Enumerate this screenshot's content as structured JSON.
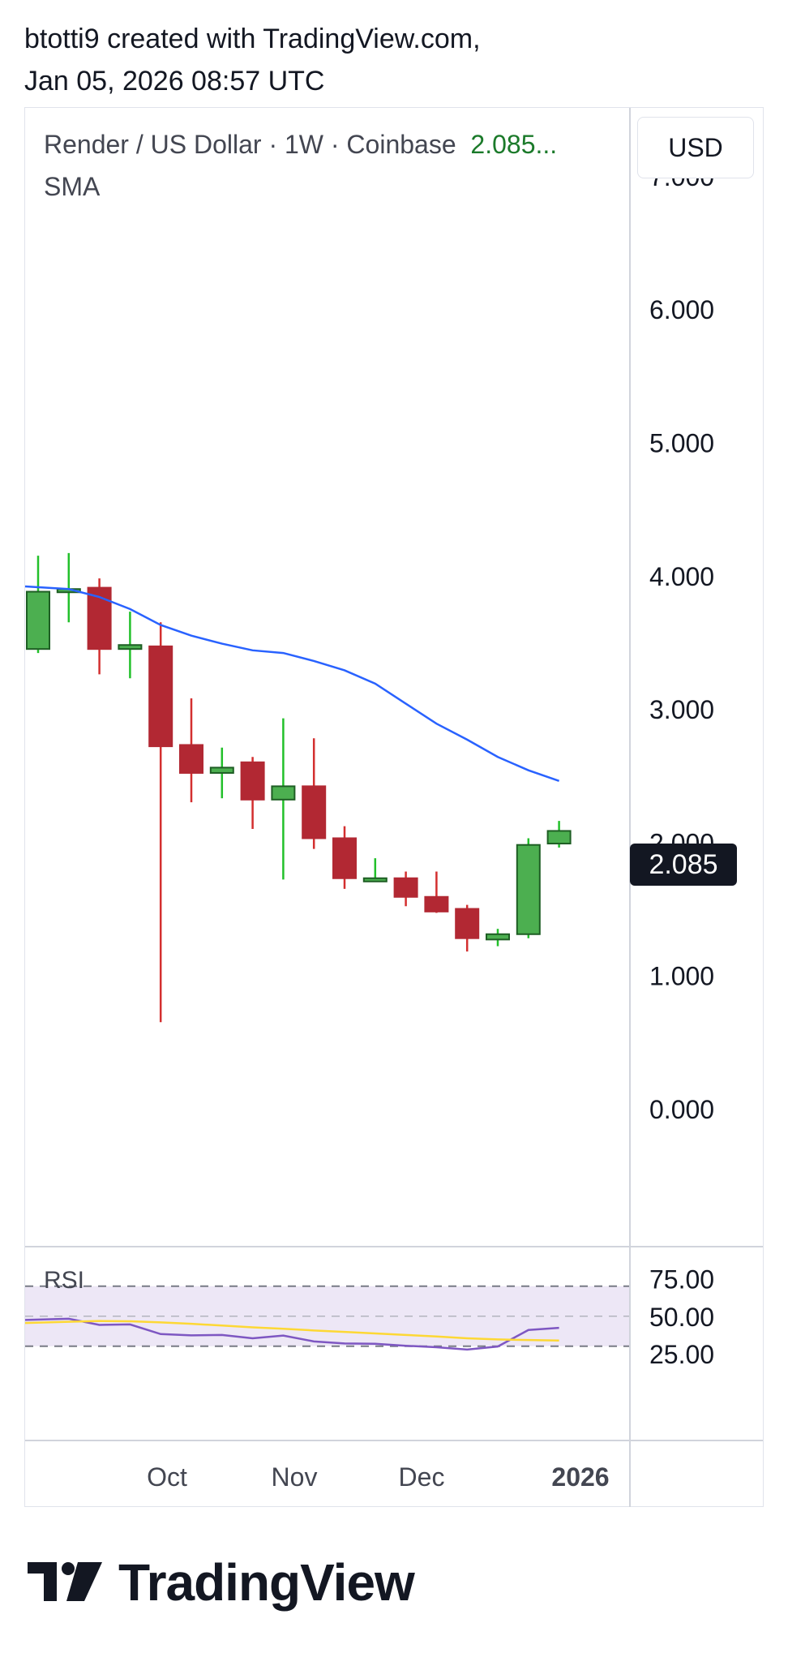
{
  "header": {
    "line1": "btotti9 created with TradingView.com,",
    "line2": "Jan 05, 2026 08:57 UTC"
  },
  "legend": {
    "title": "Render / US Dollar · 1W · Coinbase",
    "price": "2.085...",
    "indicator": "SMA"
  },
  "currency_button": "USD",
  "last_price_tag": "2.085",
  "rsi_label": "RSI",
  "logo_text": "TradingView",
  "colors": {
    "up": "#4caf50",
    "up_border": "#1e5e24",
    "down": "#b22833",
    "sma": "#2962ff",
    "rsi": "#7e57c2",
    "rsi_ma": "#fdd835",
    "rsi_band": "#ede7f6"
  },
  "chart_data": [
    {
      "type": "candlestick",
      "title": "Render / US Dollar · 1W · Coinbase",
      "y_ticks": [
        "0.000",
        "1.000",
        "2.000",
        "3.000",
        "4.000",
        "5.000",
        "6.000",
        "7.000"
      ],
      "ylim": [
        -0.65,
        7.4
      ],
      "x_ticks": [
        {
          "label": "Oct",
          "index": 4
        },
        {
          "label": "Nov",
          "index": 8
        },
        {
          "label": "Dec",
          "index": 12
        },
        {
          "label": "2026",
          "index": 17
        }
      ],
      "candles": [
        {
          "o": 3.45,
          "h": 4.15,
          "l": 3.42,
          "c": 3.88
        },
        {
          "o": 3.88,
          "h": 4.17,
          "l": 3.65,
          "c": 3.9
        },
        {
          "o": 3.91,
          "h": 3.98,
          "l": 3.26,
          "c": 3.45
        },
        {
          "o": 3.45,
          "h": 3.73,
          "l": 3.23,
          "c": 3.48
        },
        {
          "o": 3.47,
          "h": 3.65,
          "l": 0.65,
          "c": 2.72
        },
        {
          "o": 2.73,
          "h": 3.08,
          "l": 2.3,
          "c": 2.52
        },
        {
          "o": 2.52,
          "h": 2.71,
          "l": 2.33,
          "c": 2.56
        },
        {
          "o": 2.6,
          "h": 2.64,
          "l": 2.1,
          "c": 2.32
        },
        {
          "o": 2.32,
          "h": 2.93,
          "l": 1.72,
          "c": 2.42
        },
        {
          "o": 2.42,
          "h": 2.78,
          "l": 1.95,
          "c": 2.03
        },
        {
          "o": 2.03,
          "h": 2.12,
          "l": 1.65,
          "c": 1.73
        },
        {
          "o": 1.72,
          "h": 1.88,
          "l": 1.71,
          "c": 1.73
        },
        {
          "o": 1.73,
          "h": 1.78,
          "l": 1.52,
          "c": 1.59
        },
        {
          "o": 1.59,
          "h": 1.78,
          "l": 1.47,
          "c": 1.48
        },
        {
          "o": 1.5,
          "h": 1.53,
          "l": 1.18,
          "c": 1.28
        },
        {
          "o": 1.27,
          "h": 1.35,
          "l": 1.22,
          "c": 1.31
        },
        {
          "o": 1.31,
          "h": 2.03,
          "l": 1.28,
          "c": 1.98
        },
        {
          "o": 1.99,
          "h": 2.16,
          "l": 1.96,
          "c": 2.085
        }
      ],
      "series": [
        {
          "name": "SMA",
          "values": [
            3.92,
            3.9,
            3.84,
            3.75,
            3.63,
            3.55,
            3.49,
            3.44,
            3.42,
            3.36,
            3.29,
            3.19,
            3.04,
            2.89,
            2.77,
            2.64,
            2.54,
            2.46
          ]
        }
      ]
    },
    {
      "type": "line",
      "title": "RSI",
      "y_ticks": [
        "25.00",
        "50.00",
        "75.00"
      ],
      "ylim": [
        15,
        80
      ],
      "dashed_levels": [
        70,
        30
      ],
      "x_ticks": [
        "Oct",
        "Nov",
        "Dec",
        "2026"
      ],
      "series": [
        {
          "name": "RSI",
          "values": [
            47.5,
            48.3,
            44.2,
            44.5,
            38.1,
            37.2,
            37.5,
            35.3,
            37.1,
            33.2,
            31.8,
            31.6,
            30.3,
            29.3,
            27.8,
            29.8,
            40.8,
            42.2
          ]
        },
        {
          "name": "RSI-based MA",
          "values": [
            45.5,
            46.3,
            46.8,
            46.6,
            45.9,
            44.9,
            43.8,
            42.6,
            41.6,
            40.5,
            39.5,
            38.5,
            37.5,
            36.5,
            35.3,
            34.5,
            34.1,
            33.8
          ]
        }
      ]
    }
  ]
}
